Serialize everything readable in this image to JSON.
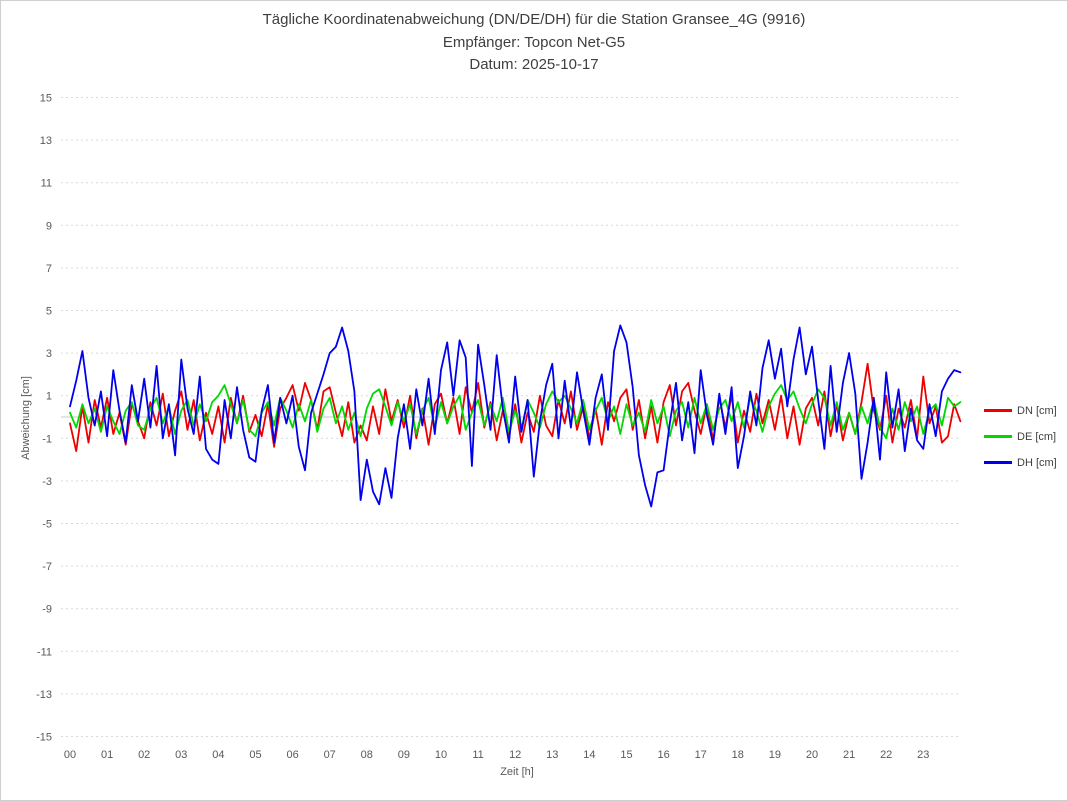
{
  "chart_data": {
    "type": "line",
    "title": "Tägliche Koordinatenabweichung (DN/DE/DH) für die Station Gransee_4G (9916)",
    "subtitle": "Empfänger: Topcon Net-G5",
    "date_line": "Datum: 2025-10-17",
    "xlabel": "Zeit [h]",
    "ylabel": "Abweichung [cm]",
    "xlim": [
      0,
      24
    ],
    "ylim": [
      -15,
      15
    ],
    "grid": "horizontal-dotted",
    "grid_color": "#d9d9d9",
    "zero_line_color": "#c9c9c9",
    "legend_position": "right",
    "yticks": [
      15,
      13,
      11,
      9,
      7,
      5,
      3,
      1,
      -1,
      -3,
      -5,
      -7,
      -9,
      -11,
      -13,
      -15
    ],
    "xticks": [
      "00",
      "01",
      "02",
      "03",
      "04",
      "05",
      "06",
      "07",
      "08",
      "09",
      "10",
      "11",
      "12",
      "13",
      "14",
      "15",
      "16",
      "17",
      "18",
      "19",
      "20",
      "21",
      "22",
      "23"
    ],
    "x_start_hour": 0,
    "x_step_minutes": 10,
    "series": [
      {
        "name": "DN [cm]",
        "color": "#ee0000",
        "values": [
          -0.3,
          -1.6,
          0.5,
          -1.2,
          0.8,
          -0.5,
          0.9,
          -0.8,
          0.2,
          -1.3,
          0.6,
          -0.2,
          -1.0,
          0.7,
          -0.4,
          1.1,
          -0.9,
          0.3,
          1.2,
          -0.6,
          0.8,
          -1.1,
          0.2,
          -0.8,
          0.5,
          -1.2,
          0.9,
          -0.3,
          1.0,
          -0.7,
          0.1,
          -0.9,
          0.6,
          -1.4,
          0.4,
          0.9,
          1.5,
          0.3,
          1.6,
          0.8,
          -0.6,
          1.2,
          1.4,
          0.2,
          -0.9,
          0.7,
          -1.2,
          -0.4,
          -1.1,
          0.5,
          -0.8,
          1.3,
          -0.2,
          0.8,
          -0.5,
          1.0,
          -1.0,
          0.4,
          -1.3,
          0.6,
          1.1,
          -0.3,
          0.9,
          -0.8,
          1.4,
          0.2,
          1.6,
          -0.5,
          0.7,
          -1.1,
          0.3,
          -0.9,
          0.6,
          -1.2,
          0.2,
          -0.7,
          1.0,
          -0.4,
          -0.9,
          0.8,
          -0.3,
          1.2,
          -0.6,
          0.5,
          -1.0,
          0.4,
          -1.3,
          0.7,
          -0.2,
          0.9,
          1.3,
          -0.6,
          0.8,
          -1.0,
          0.5,
          -1.2,
          0.7,
          1.5,
          -0.4,
          1.2,
          1.6,
          0.3,
          -0.8,
          0.6,
          -1.1,
          0.9,
          -0.5,
          1.0,
          -1.2,
          0.3,
          -0.7,
          1.1,
          -0.3,
          0.8,
          -0.6,
          1.0,
          -1.0,
          0.5,
          -1.3,
          0.4,
          0.9,
          -0.4,
          1.2,
          -0.9,
          0.6,
          -1.1,
          0.2,
          -0.8,
          0.7,
          2.5,
          0.3,
          -0.6,
          1.0,
          -1.2,
          0.4,
          -0.5,
          0.8,
          -1.0,
          1.9,
          -0.3,
          0.5,
          -1.2,
          -0.9,
          0.6,
          -0.2
        ]
      },
      {
        "name": "DE [cm]",
        "color": "#00d800",
        "values": [
          0.2,
          -0.5,
          0.6,
          -0.3,
          0.4,
          -0.7,
          0.5,
          -0.2,
          -0.8,
          0.3,
          0.7,
          -0.4,
          -0.6,
          0.4,
          0.9,
          -0.3,
          0.5,
          -0.8,
          0.3,
          0.8,
          -0.4,
          0.6,
          -0.2,
          0.7,
          1.0,
          1.5,
          0.6,
          -0.3,
          0.8,
          -0.6,
          -0.9,
          0.2,
          0.7,
          -0.4,
          0.9,
          0.3,
          -0.5,
          0.6,
          -0.2,
          0.8,
          -0.7,
          0.4,
          0.9,
          -0.3,
          0.5,
          -0.6,
          0.2,
          -0.9,
          0.4,
          1.1,
          1.3,
          0.5,
          -0.4,
          0.7,
          -0.2,
          0.6,
          -0.8,
          0.3,
          0.9,
          -0.5,
          0.7,
          -0.3,
          0.5,
          1.0,
          -0.6,
          0.2,
          0.8,
          -0.4,
          0.6,
          -0.2,
          0.9,
          -0.7,
          0.3,
          -0.6,
          0.8,
          0.2,
          -0.5,
          0.6,
          1.2,
          0.7,
          1.0,
          0.4,
          -0.3,
          0.8,
          -0.6,
          0.3,
          0.9,
          -0.2,
          0.5,
          -0.8,
          0.6,
          -0.4,
          0.2,
          -0.7,
          0.8,
          -0.3,
          0.5,
          -0.9,
          0.3,
          0.7,
          -0.5,
          0.9,
          -0.3,
          0.6,
          -0.6,
          0.4,
          0.8,
          -0.2,
          0.7,
          -0.5,
          0.9,
          0.3,
          -0.7,
          0.5,
          1.1,
          1.5,
          0.8,
          1.2,
          0.4,
          -0.3,
          0.6,
          1.3,
          0.9,
          -0.4,
          0.7,
          -0.6,
          0.2,
          -0.8,
          0.5,
          -0.3,
          0.8,
          -0.5,
          -1.0,
          0.4,
          -0.6,
          0.7,
          -0.2,
          0.5,
          -0.8,
          0.3,
          0.6,
          -0.4,
          0.9,
          0.5,
          0.7
        ]
      },
      {
        "name": "DH [cm]",
        "color": "#0000ee",
        "values": [
          0.5,
          1.7,
          3.1,
          0.9,
          -0.4,
          1.2,
          -0.9,
          2.2,
          0.3,
          -1.2,
          1.5,
          -0.2,
          1.8,
          -0.5,
          2.4,
          -1.0,
          0.6,
          -1.8,
          2.7,
          0.4,
          -0.8,
          1.9,
          -1.5,
          -2.0,
          -2.2,
          0.8,
          -1.0,
          1.4,
          -0.6,
          -1.9,
          -2.1,
          0.3,
          1.5,
          -1.2,
          0.9,
          -0.3,
          1.0,
          -1.4,
          -2.5,
          0.2,
          1.1,
          2.0,
          3.0,
          3.3,
          4.2,
          3.1,
          1.2,
          -3.9,
          -2.0,
          -3.5,
          -4.1,
          -2.4,
          -3.8,
          -1.0,
          0.6,
          -1.5,
          1.3,
          -0.4,
          1.8,
          -0.8,
          2.2,
          3.5,
          1.0,
          3.6,
          2.8,
          -2.3,
          3.4,
          1.5,
          -0.6,
          2.9,
          0.4,
          -1.2,
          1.9,
          -0.7,
          0.8,
          -2.8,
          -0.2,
          1.5,
          2.5,
          -1.0,
          1.7,
          -0.5,
          2.1,
          0.3,
          -1.3,
          0.9,
          2.0,
          -0.6,
          3.1,
          4.3,
          3.5,
          1.4,
          -1.8,
          -3.2,
          -4.2,
          -2.6,
          -2.5,
          -0.3,
          1.6,
          -1.1,
          0.7,
          -1.7,
          2.2,
          0.1,
          -1.3,
          1.1,
          -0.8,
          1.4,
          -2.4,
          -0.9,
          1.2,
          -0.4,
          2.3,
          3.6,
          1.8,
          3.2,
          0.5,
          2.7,
          4.2,
          2.0,
          3.3,
          0.8,
          -1.5,
          2.4,
          -0.7,
          1.6,
          3.0,
          1.1,
          -2.9,
          -1.2,
          0.9,
          -2.0,
          2.1,
          -0.5,
          1.3,
          -1.6,
          0.4,
          -1.1,
          -1.5,
          0.6,
          -0.9,
          1.2,
          1.8,
          2.2,
          2.1
        ]
      }
    ]
  }
}
